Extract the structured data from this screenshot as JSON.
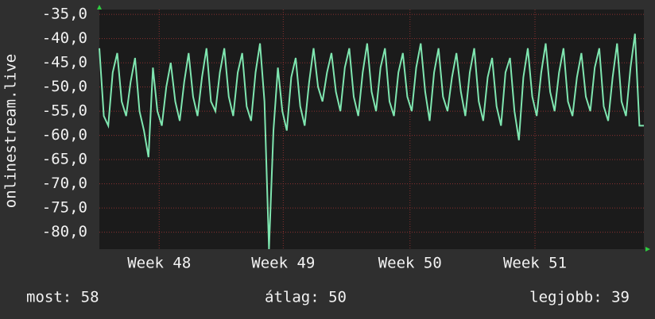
{
  "chart_data": {
    "type": "line",
    "y_label": "onlinestream.live",
    "color": "#7fe6b0",
    "grid": true,
    "xlim": [
      0,
      30.5
    ],
    "xticks": [
      {
        "value": 3.35,
        "label": "Week 48"
      },
      {
        "value": 10.3,
        "label": "Week 49"
      },
      {
        "value": 17.4,
        "label": "Week 50"
      },
      {
        "value": 24.4,
        "label": "Week 51"
      }
    ],
    "ylim": [
      -83.5,
      -34
    ],
    "yticks": [
      {
        "value": -35,
        "label": "-35,0"
      },
      {
        "value": -40,
        "label": "-40,0"
      },
      {
        "value": -45,
        "label": "-45,0"
      },
      {
        "value": -50,
        "label": "-50,0"
      },
      {
        "value": -55,
        "label": "-55,0"
      },
      {
        "value": -60,
        "label": "-60,0"
      },
      {
        "value": -65,
        "label": "-65,0"
      },
      {
        "value": -70,
        "label": "-70,0"
      },
      {
        "value": -75,
        "label": "-75,0"
      },
      {
        "value": -80,
        "label": "-80,0"
      }
    ],
    "x": [
      0,
      0.25,
      0.5,
      0.75,
      1,
      1.25,
      1.5,
      1.75,
      2,
      2.25,
      2.5,
      2.75,
      3,
      3.25,
      3.5,
      3.75,
      4,
      4.25,
      4.5,
      4.75,
      5,
      5.25,
      5.5,
      5.75,
      6,
      6.25,
      6.5,
      6.75,
      7,
      7.25,
      7.5,
      7.75,
      8,
      8.25,
      8.5,
      8.75,
      9,
      9.25,
      9.5,
      9.75,
      10,
      10.25,
      10.5,
      10.75,
      11,
      11.25,
      11.5,
      11.75,
      12,
      12.25,
      12.5,
      12.75,
      13,
      13.25,
      13.5,
      13.75,
      14,
      14.25,
      14.5,
      14.75,
      15,
      15.25,
      15.5,
      15.75,
      16,
      16.25,
      16.5,
      16.75,
      17,
      17.25,
      17.5,
      17.75,
      18,
      18.25,
      18.5,
      18.75,
      19,
      19.25,
      19.5,
      19.75,
      20,
      20.25,
      20.5,
      20.75,
      21,
      21.25,
      21.5,
      21.75,
      22,
      22.25,
      22.5,
      22.75,
      23,
      23.25,
      23.5,
      23.75,
      24,
      24.25,
      24.5,
      24.75,
      25,
      25.25,
      25.5,
      25.75,
      26,
      26.25,
      26.5,
      26.75,
      27,
      27.25,
      27.5,
      27.75,
      28,
      28.25,
      28.5,
      28.75,
      29,
      29.25,
      29.5,
      29.75,
      30,
      30.25,
      30.5
    ],
    "values": [
      -42,
      -56,
      -58,
      -47,
      -43,
      -53,
      -56,
      -49,
      -44,
      -55,
      -59,
      -64.5,
      -46,
      -55,
      -58,
      -50,
      -45,
      -53,
      -57,
      -49,
      -43,
      -52,
      -56,
      -48,
      -42,
      -53,
      -55,
      -47,
      -42,
      -52,
      -56,
      -47,
      -43,
      -54,
      -57,
      -47,
      -41,
      -53,
      -83.5,
      -59,
      -46,
      -55,
      -59,
      -48,
      -44,
      -54,
      -58,
      -49,
      -42,
      -50,
      -53,
      -47,
      -43,
      -51,
      -55,
      -46,
      -42,
      -52,
      -56,
      -47,
      -41,
      -51,
      -55,
      -46,
      -42,
      -53,
      -56,
      -47,
      -43,
      -52,
      -55,
      -46,
      -41,
      -51,
      -57,
      -47,
      -42,
      -52,
      -55,
      -48,
      -43,
      -51,
      -56,
      -47,
      -42,
      -53,
      -57,
      -48,
      -44,
      -54,
      -58,
      -47,
      -44,
      -55,
      -61,
      -48,
      -42,
      -52,
      -56,
      -47,
      -41,
      -51,
      -55,
      -47,
      -42,
      -53,
      -56,
      -48,
      -43,
      -52,
      -55,
      -46,
      -42,
      -54,
      -57,
      -48,
      -41,
      -53,
      -56,
      -46,
      -39,
      -58,
      -58
    ]
  },
  "footer": {
    "current": "most: 58",
    "average": "átlag: 50",
    "best": "legjobb: 39"
  }
}
